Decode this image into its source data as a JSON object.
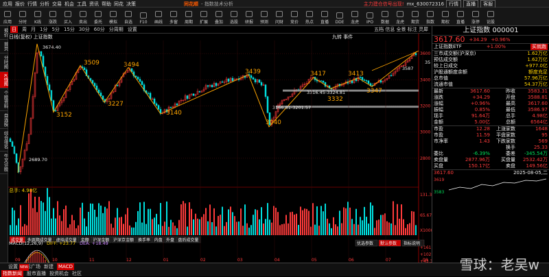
{
  "menu": {
    "items": [
      "应用",
      "报价",
      "行情",
      "分析",
      "交易",
      "机会",
      "工具",
      "资讯",
      "帮助",
      "同花",
      "决策"
    ],
    "logo": "同花顺",
    "window_title": "- 指数技术分析",
    "notice": "主力建仓信号出现!",
    "account": "mx_630072316",
    "buttons": [
      "行情",
      "直播",
      "客服"
    ]
  },
  "toolbar": {
    "items": [
      "应用",
      "分时",
      "K线",
      "涨跌",
      "买入",
      "卖出",
      "委托",
      "模拟",
      "自选",
      "F10",
      "画线",
      "多窗",
      "周期",
      "扩展",
      "叠加",
      "选股",
      "研报",
      "预测",
      "问财",
      "竞价",
      "热点",
      "直播",
      "DDE",
      "龙虎",
      "IPO",
      "数据",
      "龙虎",
      "期货",
      "指数",
      "期权",
      "直播",
      "涨停",
      "论股"
    ]
  },
  "leftnav": [
    "报价",
    "首页",
    "分时图",
    "K线图",
    "个股资料",
    "自选股",
    "综合排名",
    "牛叉诊股"
  ],
  "period": {
    "items": [
      "日",
      "周",
      "月",
      "1分",
      "5分",
      "15分",
      "30分",
      "60分",
      "分周期",
      "设置"
    ],
    "selected": "日"
  },
  "chart": {
    "title": "日线(复权)",
    "name": "上证指数",
    "ref_btn": "九转",
    "event_btn": "事件",
    "tools": [
      "五档",
      "信息",
      "全景",
      "标注",
      "灵犀"
    ]
  },
  "chart_data": {
    "type": "candlestick",
    "title": "上证指数 日线",
    "ylim": [
      2600,
      3700
    ],
    "yticks": [
      2800,
      3000,
      3200,
      3400,
      3600
    ],
    "swing_labels": [
      {
        "v": "3674.40"
      },
      {
        "v": "2689.70"
      },
      {
        "v": "3152"
      },
      {
        "v": "3509"
      },
      {
        "v": "3227"
      },
      {
        "v": "3494"
      },
      {
        "v": "3140"
      },
      {
        "v": "3439"
      },
      {
        "v": "3040"
      },
      {
        "v": "3417"
      },
      {
        "v": "3413"
      },
      {
        "v": "3332"
      },
      {
        "v": "3347"
      },
      {
        "v": "3316.45-3324.81"
      },
      {
        "v": "3166.81-3201.57"
      },
      {
        "v": "3587"
      },
      {
        "v": "35"
      }
    ],
    "volume": {
      "title": "总手: 4.98亿",
      "ticks": [
        "131.35亿",
        "65.67亿",
        "X1000"
      ]
    },
    "macd": {
      "label": "MACD(12,26,9)",
      "diff": "DIFF: +23.77",
      "dea": "DEA: +18.49",
      "ticks": [
        "+161.1",
        "+102.2",
        "+43.31",
        "-15.61",
        "-74.53"
      ]
    },
    "xaxis": [
      "09",
      "10",
      "11",
      "12",
      "01",
      "02",
      "03",
      "04",
      "05",
      "06",
      "07",
      "08"
    ]
  },
  "subtabs": [
    "成交量",
    "多周期成交量",
    "虚拟成交量",
    "金额",
    "沪深金额",
    "沪深京金额",
    "换手率",
    "内盘",
    "外盘",
    "盘后成交量"
  ],
  "macdtabs": [
    "优选参数",
    "默认参数",
    "指标说明"
  ],
  "bottom": {
    "row1": [
      "设置",
      "指标广场",
      "新建",
      "MACD"
    ],
    "row2": [
      "指数新闻",
      "股市直播",
      "投资机会",
      "社区"
    ],
    "new_badge": "NEW"
  },
  "right": {
    "title": "上证指数",
    "code": "000001",
    "price": "3617.60",
    "change": "+34.29",
    "pct": "+0.96%",
    "etf": "上证指数ETF",
    "etf_pct": "+1.00%",
    "etf_btn": "买就跑",
    "stats": [
      [
        "三市成交额(沪深京)",
        "1.62万亿"
      ],
      [
        "预估成交额",
        "1.62万亿"
      ],
      [
        "较上日成交",
        "+977.0亿"
      ],
      [
        "沪股通额度余额",
        "额度充足"
      ],
      [
        "总市值",
        "57.96万亿"
      ],
      [
        "流通市值",
        "54.37万亿"
      ]
    ],
    "quote": [
      [
        "最新",
        "3617.60",
        "昨收",
        "3583.31"
      ],
      [
        "涨跌",
        "+34.29",
        "开盘",
        "3588.81"
      ],
      [
        "涨幅",
        "+0.96%",
        "最高",
        "3617.60"
      ],
      [
        "振幅",
        "0.85%",
        "最低",
        "3586.97"
      ],
      [
        "现手",
        "91.64万",
        "总手",
        "4.98亿"
      ],
      [
        "金额",
        "5.00亿",
        "总额",
        "6564亿"
      ]
    ],
    "breadth": [
      [
        "市盈",
        "12.28",
        "上涨家数",
        "1648"
      ],
      [
        "市盈",
        "11.59",
        "平盘家数",
        "95"
      ],
      [
        "市净率",
        "1.43",
        "下跌家数",
        "569"
      ],
      [
        "",
        "",
        "换手",
        "25.33"
      ],
      [
        "委比",
        "-6.39%",
        "委差",
        "-345.54万"
      ],
      [
        "卖盘量",
        "2877.96万",
        "买盘量",
        "2532.42万"
      ],
      [
        "买盘",
        "150.17亿",
        "卖盘",
        "149.56亿"
      ]
    ],
    "date": "2025-08-05,二",
    "last": "3617.60",
    "mini_top": "3619",
    "mini_bot": "3583"
  },
  "watermark": "雪球：老吴w"
}
